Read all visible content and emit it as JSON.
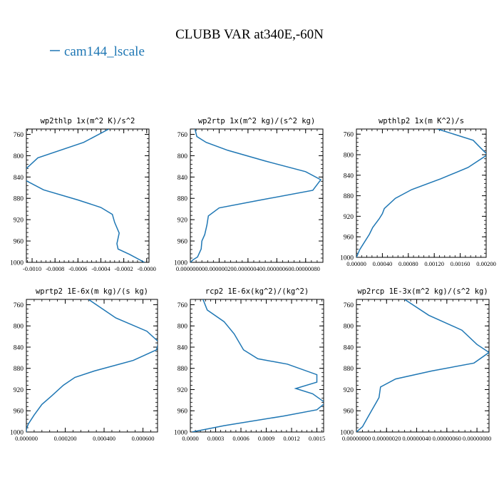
{
  "figure": {
    "title": "CLUBB VAR at340E,-60N",
    "legend": {
      "label": "cam144_lscale",
      "color": "#1f77b4"
    },
    "line_color": "#1f77b4"
  },
  "chart_data": [
    {
      "type": "line",
      "title": "wp2thlp   1x(m^2 K)/s^2",
      "xlim": [
        -0.00105,
        2e-05
      ],
      "ylim": [
        1000,
        750
      ],
      "yticks": [
        760,
        800,
        840,
        880,
        920,
        960,
        1000
      ],
      "xticks": [
        -0.001,
        -0.0008,
        -0.0006,
        -0.0004,
        -0.0002,
        0.0
      ],
      "xtick_labels": [
        "-0.0010",
        "-0.0008",
        "-0.0006",
        "-0.0004",
        "-0.0002",
        "-0.0000"
      ],
      "series": [
        {
          "x": [
            -0.00033,
            -0.00055,
            -0.00095,
            -0.00108,
            -0.00106,
            -0.0009,
            -0.0006,
            -0.0004,
            -0.0003,
            -0.00028,
            -0.00024,
            -0.00026,
            -0.00025,
            -0.00015,
            -2e-05
          ],
          "y": [
            750,
            775,
            804,
            830,
            846,
            864,
            883,
            897,
            910,
            925,
            945,
            965,
            975,
            985,
            1000
          ]
        }
      ]
    },
    {
      "type": "line",
      "title": "wp2rtp   1x(m^2 kg)/(s^2 kg)",
      "xlim": [
        0,
        9.2e-07
      ],
      "ylim": [
        1000,
        750
      ],
      "yticks": [
        760,
        800,
        840,
        880,
        920,
        960,
        1000
      ],
      "xticks": [
        0,
        2e-07,
        4e-07,
        6e-07,
        8e-07
      ],
      "xtick_labels": [
        "0.00000000",
        "0.00000020",
        "0.00000040",
        "0.00000060",
        "0.00000080"
      ],
      "series": [
        {
          "x": [
            3.2e-08,
            4.5e-08,
            1.1e-07,
            2.6e-07,
            5.2e-07,
            8e-07,
            9.05e-07,
            8.5e-07,
            4.5e-07,
            2e-07,
            1.25e-07,
            1.15e-07,
            1e-07,
            8e-08,
            7.5e-08,
            5e-08,
            2e-08,
            0.0
          ],
          "y": [
            750,
            764,
            775,
            790,
            810,
            830,
            845,
            865,
            885,
            898,
            913,
            930,
            948,
            960,
            975,
            990,
            995,
            1000
          ]
        }
      ]
    },
    {
      "type": "line",
      "title": "wpthlp2   1x(m K^2)/s",
      "xlim": [
        0,
        0.002
      ],
      "ylim": [
        1000,
        750
      ],
      "yticks": [
        760,
        800,
        840,
        880,
        920,
        960,
        1000
      ],
      "xticks": [
        0,
        0.0004,
        0.0008,
        0.0012,
        0.0016,
        0.002
      ],
      "xtick_labels": [
        "0.00000",
        "0.00040",
        "0.00080",
        "0.00120",
        "0.00160",
        "0.00200"
      ],
      "series": [
        {
          "x": [
            0.00125,
            0.0018,
            0.0019,
            0.00202,
            0.00172,
            0.0013,
            0.00085,
            0.0006,
            0.00043,
            0.0004,
            0.00035,
            0.00025,
            0.0002,
            5e-05,
            0.0
          ],
          "y": [
            750,
            772,
            785,
            800,
            825,
            847,
            868,
            885,
            905,
            915,
            925,
            942,
            955,
            985,
            1000
          ]
        }
      ]
    },
    {
      "type": "line",
      "title": "wprtp2   1E-6x(m kg)/(s kg)",
      "xlim": [
        0,
        0.000675
      ],
      "ylim": [
        1000,
        750
      ],
      "yticks": [
        760,
        800,
        840,
        880,
        920,
        960,
        1000
      ],
      "xticks": [
        0,
        0.0002,
        0.0004,
        0.0006
      ],
      "xtick_labels": [
        "0.000000",
        "0.000200",
        "0.000400",
        "0.000600"
      ],
      "series": [
        {
          "x": [
            0.00032,
            0.00046,
            0.00062,
            0.00068,
            0.00067,
            0.00055,
            0.00035,
            0.00025,
            0.00019,
            0.00013,
            8e-05,
            4e-05,
            1e-05,
            0.0,
            0.0
          ],
          "y": [
            750,
            785,
            810,
            830,
            845,
            865,
            885,
            897,
            912,
            932,
            948,
            968,
            985,
            995,
            1000
          ]
        }
      ]
    },
    {
      "type": "line",
      "title": "rcp2   1E-6x(kg^2)/(kg^2)",
      "xlim": [
        0,
        0.00158
      ],
      "ylim": [
        1000,
        750
      ],
      "yticks": [
        760,
        800,
        840,
        880,
        920,
        960,
        1000
      ],
      "xticks": [
        0,
        0.0003,
        0.0006,
        0.0009,
        0.0012,
        0.0015
      ],
      "xtick_labels": [
        "0.0000",
        "0.0003",
        "0.0006",
        "0.0009",
        "0.0012",
        "0.0015"
      ],
      "series": [
        {
          "x": [
            0.00015,
            0.0002,
            0.0004,
            0.00052,
            0.00063,
            0.0008,
            0.00115,
            0.0015,
            0.0015,
            0.00125,
            0.00145,
            0.0016,
            0.0015,
            0.0011,
            0.0004,
            2e-05
          ],
          "y": [
            750,
            770,
            792,
            815,
            845,
            862,
            872,
            892,
            906,
            918,
            928,
            945,
            958,
            970,
            988,
            1000
          ]
        }
      ]
    },
    {
      "type": "line",
      "title": "wp2rcp   1E-3x(m^2 kg)/(s^2 kg)",
      "xlim": [
        0,
        8.8e-07
      ],
      "ylim": [
        1000,
        750
      ],
      "yticks": [
        760,
        800,
        840,
        880,
        920,
        960,
        1000
      ],
      "xticks": [
        0,
        2e-07,
        4e-07,
        6e-07,
        8e-07
      ],
      "xtick_labels": [
        "0.00000000",
        "0.00000020",
        "0.00000040",
        "0.00000060",
        "0.00000080"
      ],
      "series": [
        {
          "x": [
            3.2e-07,
            4.8e-07,
            7e-07,
            8e-07,
            8.8e-07,
            7.8e-07,
            5e-07,
            2.6e-07,
            1.6e-07,
            1.5e-07,
            1.3e-07,
            1e-07,
            7e-08,
            4e-08,
            0.0
          ],
          "y": [
            750,
            780,
            808,
            835,
            850,
            870,
            885,
            900,
            915,
            935,
            945,
            960,
            975,
            990,
            1000
          ]
        }
      ]
    }
  ]
}
